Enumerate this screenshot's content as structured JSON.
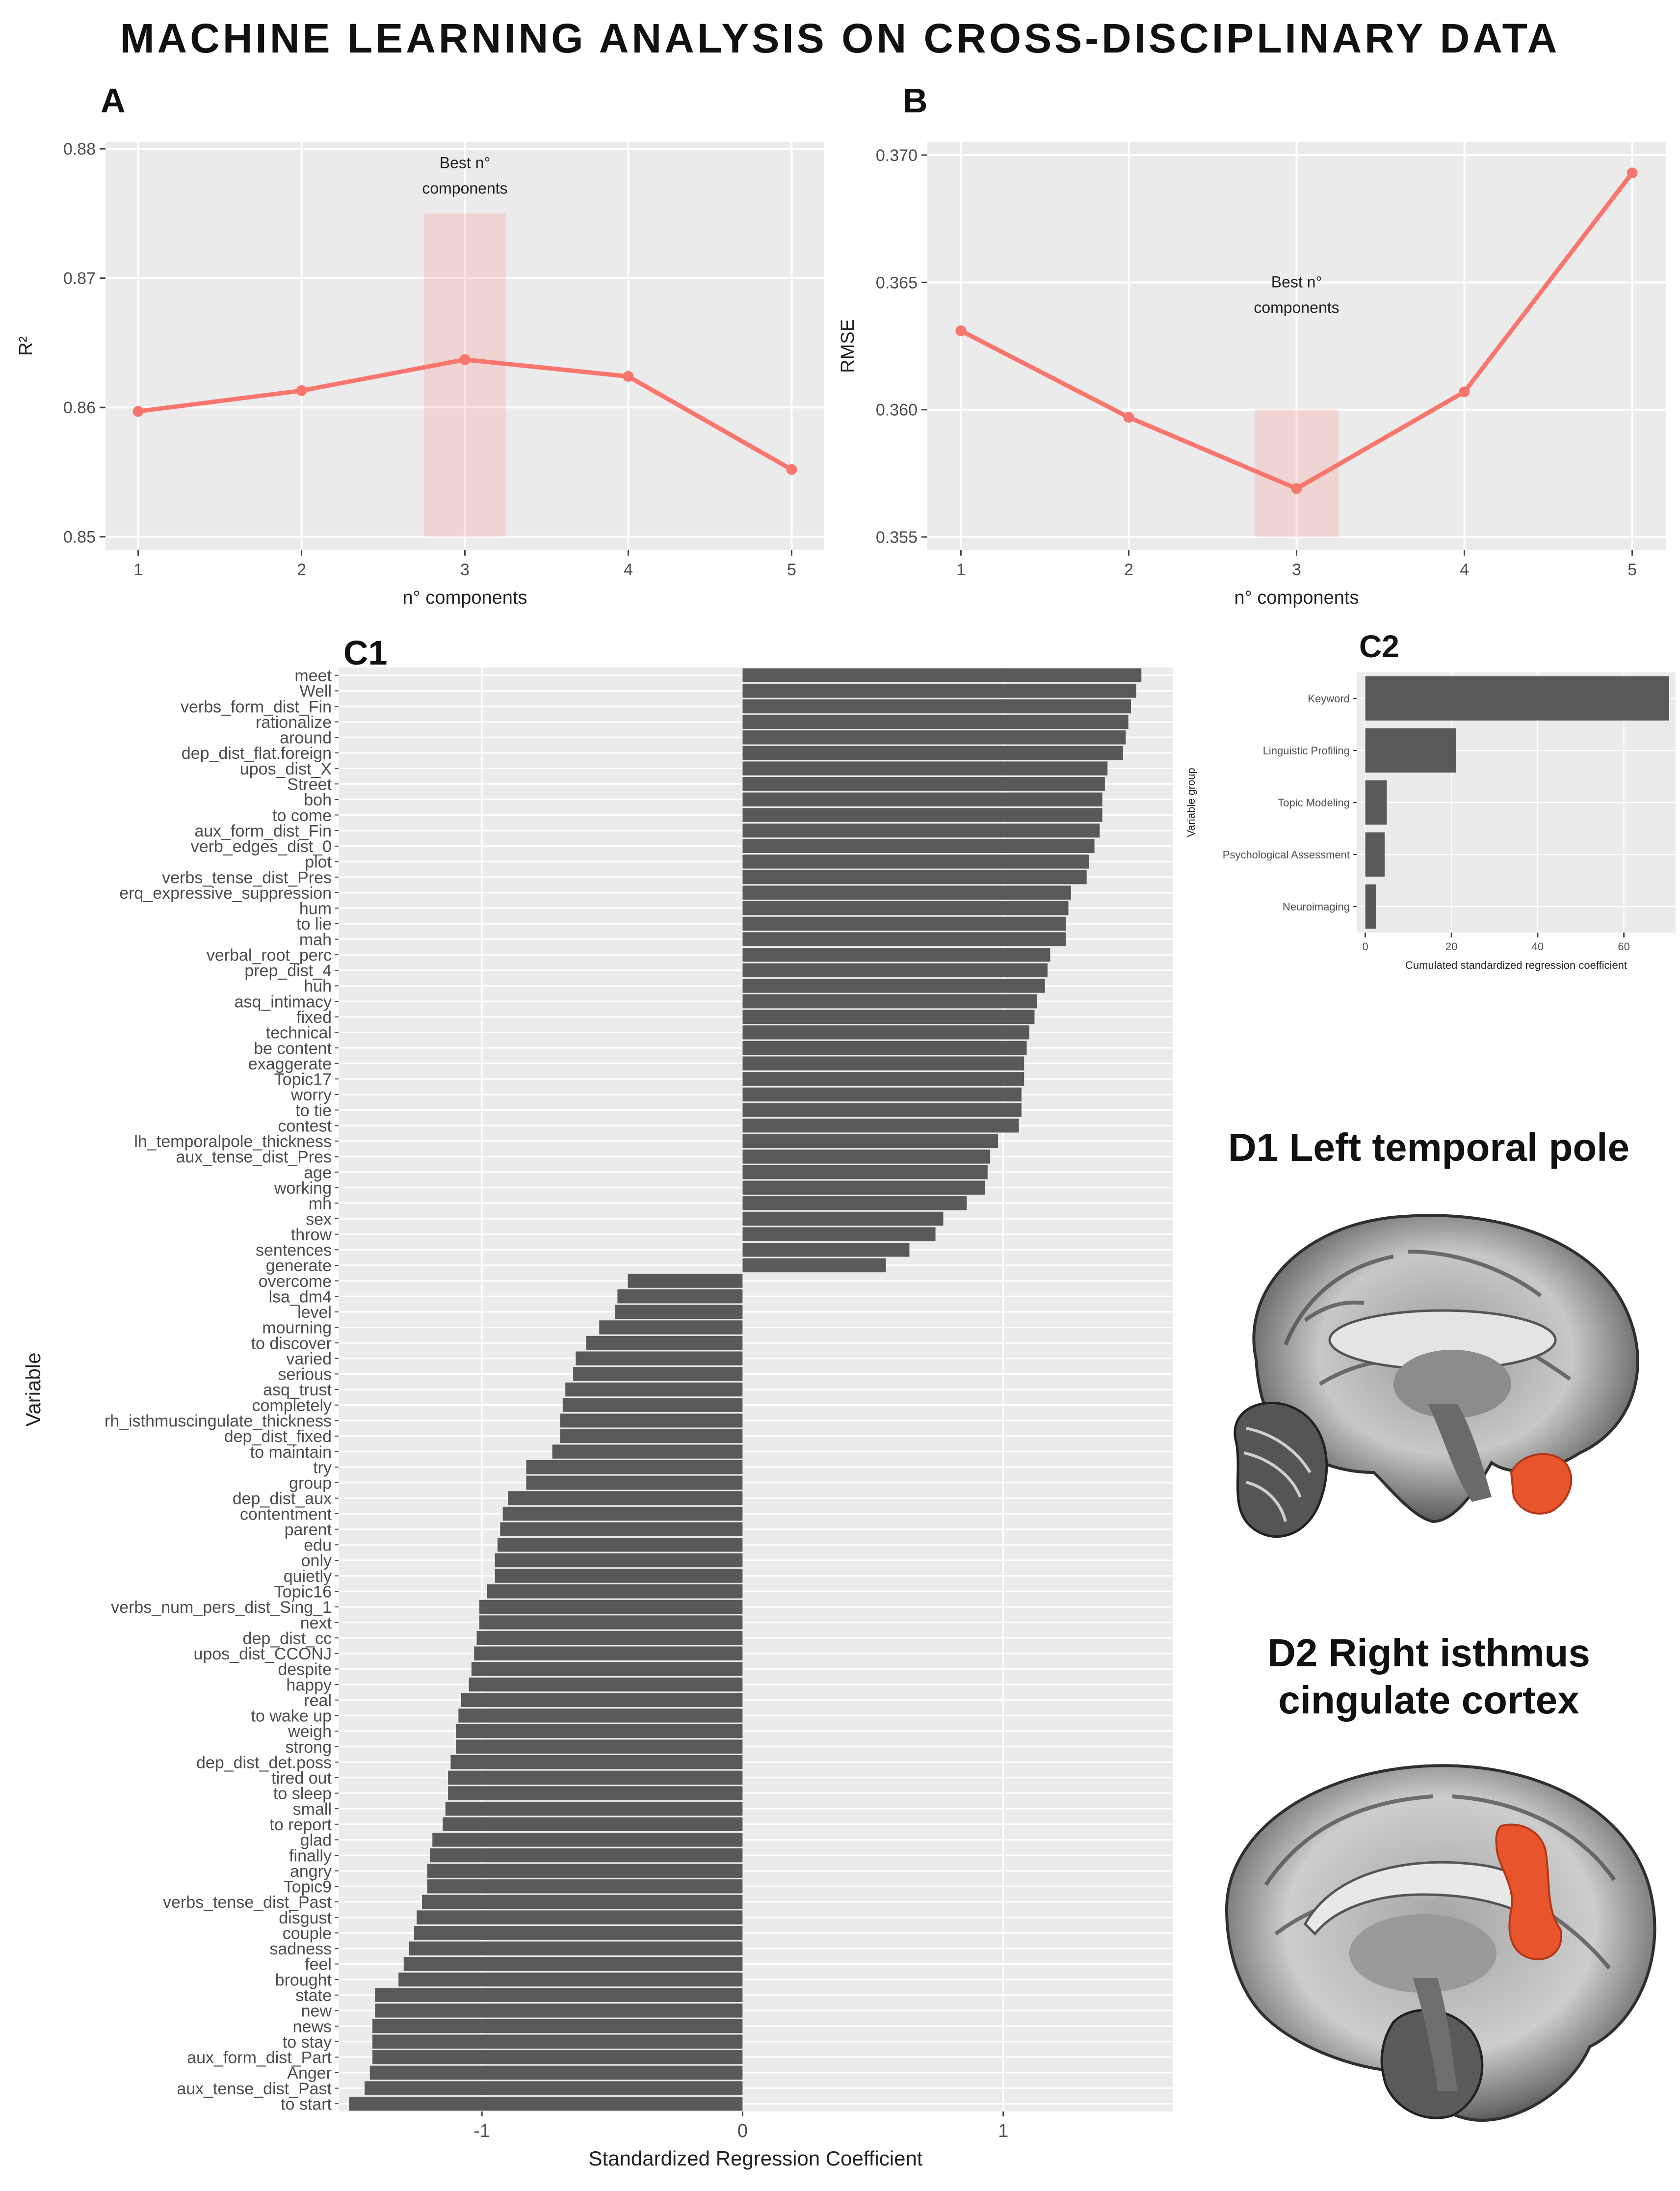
{
  "title": "MACHINE LEARNING ANALYSIS ON CROSS-DISCIPLINARY DATA",
  "chart_data": [
    {
      "id": "A",
      "type": "line",
      "panel_label": "A",
      "x": [
        1,
        2,
        3,
        4,
        5
      ],
      "y": [
        0.8597,
        0.8613,
        0.8637,
        0.8624,
        0.8552
      ],
      "x_ticks": [
        "1",
        "2",
        "3",
        "4",
        "5"
      ],
      "y_ticks": [
        "0.85",
        "0.86",
        "0.87",
        "0.88"
      ],
      "ylim": [
        0.849,
        0.8805
      ],
      "xlim": [
        0.8,
        5.2
      ],
      "xlabel": "n° components",
      "ylabel": "R²",
      "highlight": {
        "x_from": 2.75,
        "x_to": 3.25,
        "y_from": 0.85,
        "y_to": 0.875
      },
      "annotation": [
        "Best n°",
        "components"
      ],
      "annotation_at": {
        "x": 3,
        "y": 0.8785
      },
      "color": "#f8766d"
    },
    {
      "id": "B",
      "type": "line",
      "panel_label": "B",
      "x": [
        1,
        2,
        3,
        4,
        5
      ],
      "y": [
        0.3631,
        0.3597,
        0.3569,
        0.3607,
        0.3693
      ],
      "x_ticks": [
        "1",
        "2",
        "3",
        "4",
        "5"
      ],
      "y_ticks": [
        "0.355",
        "0.360",
        "0.365",
        "0.370"
      ],
      "ylim": [
        0.3545,
        0.3705
      ],
      "xlim": [
        0.8,
        5.2
      ],
      "xlabel": "n° components",
      "ylabel": "RMSE",
      "highlight": {
        "x_from": 2.75,
        "x_to": 3.25,
        "y_from": 0.355,
        "y_to": 0.36
      },
      "annotation": [
        "Best n°",
        "components"
      ],
      "annotation_at": {
        "x": 3,
        "y": 0.3648
      },
      "color": "#f8766d"
    },
    {
      "id": "C1",
      "type": "bar",
      "orientation": "horizontal",
      "panel_label": "C1",
      "xlabel": "Standardized Regression Coefficient",
      "ylabel": "Variable",
      "xlim": [
        -1.55,
        1.65
      ],
      "x_ticks": [
        -1,
        0,
        1
      ],
      "x_tick_labels": [
        "-1",
        "0",
        "1"
      ],
      "categories": [
        "meet",
        "Well",
        "verbs_form_dist_Fin",
        "rationalize",
        "around",
        "dep_dist_flat.foreign",
        "upos_dist_X",
        "Street",
        "boh",
        "to come",
        "aux_form_dist_Fin",
        "verb_edges_dist_0",
        "plot",
        "verbs_tense_dist_Pres",
        "erq_expressive_suppression",
        "hum",
        "to lie",
        "mah",
        "verbal_root_perc",
        "prep_dist_4",
        "huh",
        "asq_intimacy",
        "fixed",
        "technical",
        "be content",
        "exaggerate",
        "Topic17",
        "worry",
        "to tie",
        "contest",
        "lh_temporalpole_thickness",
        "aux_tense_dist_Pres",
        "age",
        "working",
        "mh",
        "sex",
        "throw",
        "sentences",
        "generate",
        "overcome",
        "lsa_dm4",
        "level",
        "mourning",
        "to discover",
        "varied",
        "serious",
        "asq_trust",
        "completely",
        "rh_isthmuscingulate_thickness",
        "dep_dist_fixed",
        "to maintain",
        "try",
        "group",
        "dep_dist_aux",
        "contentment",
        "parent",
        "edu",
        "only",
        "quietly",
        "Topic16",
        "verbs_num_pers_dist_Sing_1",
        "next",
        "dep_dist_cc",
        "upos_dist_CCONJ",
        "despite",
        "happy",
        "real",
        "to wake up",
        "weigh",
        "strong",
        "dep_dist_det.poss",
        "tired out",
        "to sleep",
        "small",
        "to report",
        "glad",
        "finally",
        "angry",
        "Topic9",
        "verbs_tense_dist_Past",
        "disgust",
        "couple",
        "sadness",
        "feel",
        "brought",
        "state",
        "new",
        "news",
        "to stay",
        "aux_form_dist_Part",
        "Anger",
        "aux_tense_dist_Past",
        "to start"
      ],
      "values": [
        1.53,
        1.51,
        1.49,
        1.48,
        1.47,
        1.46,
        1.4,
        1.39,
        1.38,
        1.38,
        1.37,
        1.35,
        1.33,
        1.32,
        1.26,
        1.25,
        1.24,
        1.24,
        1.18,
        1.17,
        1.16,
        1.13,
        1.12,
        1.1,
        1.09,
        1.08,
        1.08,
        1.07,
        1.07,
        1.06,
        0.98,
        0.95,
        0.94,
        0.93,
        0.86,
        0.77,
        0.74,
        0.64,
        0.55,
        -0.44,
        -0.48,
        -0.49,
        -0.55,
        -0.6,
        -0.64,
        -0.65,
        -0.68,
        -0.69,
        -0.7,
        -0.7,
        -0.73,
        -0.83,
        -0.83,
        -0.9,
        -0.92,
        -0.93,
        -0.94,
        -0.95,
        -0.95,
        -0.98,
        -1.01,
        -1.01,
        -1.02,
        -1.03,
        -1.04,
        -1.05,
        -1.08,
        -1.09,
        -1.1,
        -1.1,
        -1.12,
        -1.13,
        -1.13,
        -1.14,
        -1.15,
        -1.19,
        -1.2,
        -1.21,
        -1.21,
        -1.23,
        -1.25,
        -1.26,
        -1.28,
        -1.3,
        -1.32,
        -1.41,
        -1.41,
        -1.42,
        -1.42,
        -1.42,
        -1.43,
        -1.45,
        -1.51
      ],
      "color": "#595959"
    },
    {
      "id": "C2",
      "type": "bar",
      "orientation": "horizontal",
      "panel_label": "C2",
      "xlabel": "Cumulated standardized regression coefficient",
      "ylabel": "Variable group",
      "xlim": [
        -2,
        72
      ],
      "x_ticks": [
        0,
        20,
        40,
        60
      ],
      "x_tick_labels": [
        "0",
        "20",
        "40",
        "60"
      ],
      "categories": [
        "Keyword",
        "Linguistic Profiling",
        "Topic Modeling",
        "Psychological Assessment",
        "Neuroimaging"
      ],
      "values": [
        70.5,
        21,
        5,
        4.5,
        2.5
      ],
      "color": "#595959"
    }
  ],
  "brains": {
    "d1_label": "D1 Left temporal pole",
    "d2_label_line1": "D2 Right isthmus",
    "d2_label_line2": "cingulate cortex",
    "highlight_color": "#e8542c"
  }
}
